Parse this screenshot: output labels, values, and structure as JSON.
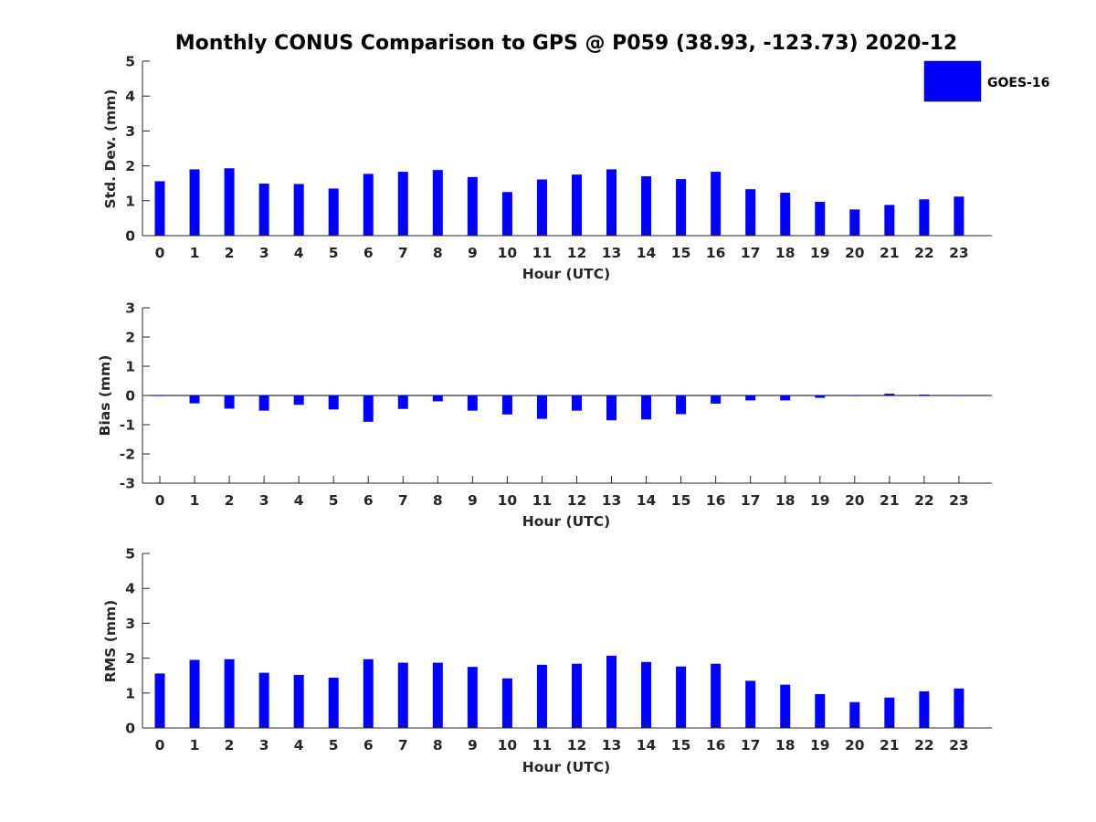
{
  "figure": {
    "title": "Monthly CONUS Comparison to GPS @ P059 (38.93, -123.73) 2020-12",
    "legend": {
      "label": "GOES-16",
      "color": "#0000ff",
      "position": "top-right"
    },
    "bar_color": "#0000ff"
  },
  "chart_data": [
    {
      "type": "bar",
      "name": "std-dev",
      "title": "Monthly CONUS Comparison to GPS @ P059 (38.93, -123.73) 2020-12",
      "xlabel": "Hour (UTC)",
      "ylabel": "Std. Dev. (mm)",
      "categories": [
        "0",
        "1",
        "2",
        "3",
        "4",
        "5",
        "6",
        "7",
        "8",
        "9",
        "10",
        "11",
        "12",
        "13",
        "14",
        "15",
        "16",
        "17",
        "18",
        "19",
        "20",
        "21",
        "22",
        "23"
      ],
      "series": [
        {
          "name": "GOES-16",
          "values": [
            1.56,
            1.9,
            1.93,
            1.49,
            1.48,
            1.35,
            1.77,
            1.83,
            1.88,
            1.68,
            1.25,
            1.61,
            1.75,
            1.9,
            1.7,
            1.62,
            1.83,
            1.33,
            1.23,
            0.97,
            0.75,
            0.88,
            1.04,
            1.12
          ]
        }
      ],
      "ylim": [
        0,
        5
      ],
      "yticks": [
        0,
        1,
        2,
        3,
        4,
        5
      ]
    },
    {
      "type": "bar",
      "name": "bias",
      "xlabel": "Hour (UTC)",
      "ylabel": "Bias (mm)",
      "categories": [
        "0",
        "1",
        "2",
        "3",
        "4",
        "5",
        "6",
        "7",
        "8",
        "9",
        "10",
        "11",
        "12",
        "13",
        "14",
        "15",
        "16",
        "17",
        "18",
        "19",
        "20",
        "21",
        "22",
        "23"
      ],
      "series": [
        {
          "name": "GOES-16",
          "values": [
            -0.02,
            -0.27,
            -0.45,
            -0.52,
            -0.32,
            -0.48,
            -0.9,
            -0.46,
            -0.2,
            -0.52,
            -0.65,
            -0.8,
            -0.52,
            -0.85,
            -0.82,
            -0.64,
            -0.28,
            -0.17,
            -0.17,
            -0.08,
            -0.02,
            0.06,
            0.03,
            -0.01
          ]
        }
      ],
      "ylim": [
        -3,
        3
      ],
      "yticks": [
        -3,
        -2,
        -1,
        0,
        1,
        2,
        3
      ],
      "zero_line": true
    },
    {
      "type": "bar",
      "name": "rms",
      "xlabel": "Hour (UTC)",
      "ylabel": "RMS (mm)",
      "categories": [
        "0",
        "1",
        "2",
        "3",
        "4",
        "5",
        "6",
        "7",
        "8",
        "9",
        "10",
        "11",
        "12",
        "13",
        "14",
        "15",
        "16",
        "17",
        "18",
        "19",
        "20",
        "21",
        "22",
        "23"
      ],
      "series": [
        {
          "name": "GOES-16",
          "values": [
            1.56,
            1.95,
            1.97,
            1.58,
            1.52,
            1.44,
            1.97,
            1.87,
            1.87,
            1.75,
            1.42,
            1.81,
            1.84,
            2.07,
            1.89,
            1.76,
            1.84,
            1.35,
            1.24,
            0.97,
            0.74,
            0.87,
            1.05,
            1.13
          ]
        }
      ],
      "ylim": [
        0,
        5
      ],
      "yticks": [
        0,
        1,
        2,
        3,
        4,
        5
      ]
    }
  ]
}
